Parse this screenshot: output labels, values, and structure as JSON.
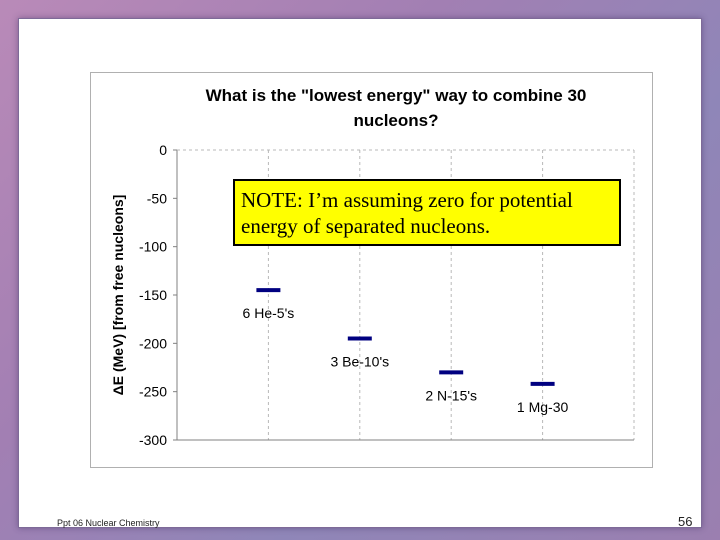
{
  "slide": {
    "footer": "Ppt 06 Nuclear Chemistry",
    "page_number": "56",
    "note": "NOTE: I’m assuming zero for potential energy of separated nucleons."
  },
  "chart_data": {
    "type": "scatter",
    "title_lines": [
      "What is the \"lowest energy\" way to combine 30",
      "nucleons?"
    ],
    "ylabel": "ΔE (MeV) [from free nucleons]",
    "xlabel": "",
    "ylim": [
      -300,
      0
    ],
    "yticks": [
      0,
      -50,
      -100,
      -150,
      -200,
      -250,
      -300
    ],
    "grid": true,
    "categories": [
      "6 He-5's",
      "3 Be-10's",
      "2 N-15's",
      "1 Mg-30"
    ],
    "values": [
      -145,
      -195,
      -230,
      -242
    ],
    "marker_color": "#000080"
  }
}
